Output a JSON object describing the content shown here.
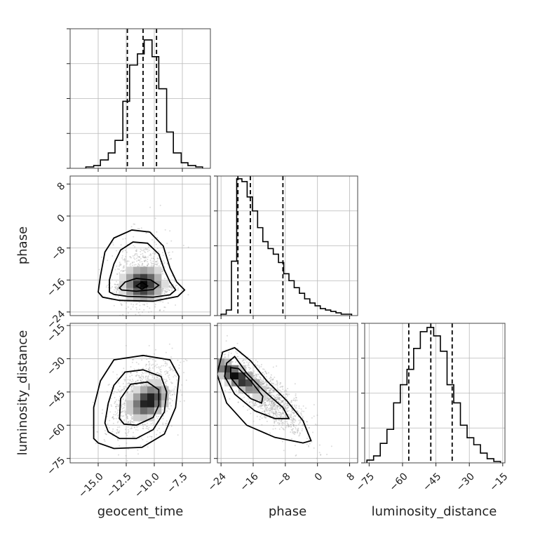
{
  "chart_data": {
    "type": "corner",
    "parameters": [
      "geocent_time",
      "phase",
      "luminosity_distance"
    ],
    "axis_labels": {
      "geocent_time": "geocent_time",
      "phase": "phase",
      "luminosity_distance": "luminosity_distance"
    },
    "ranges": {
      "geocent_time": [
        -17.5,
        -5.0
      ],
      "phase": [
        -24.9,
        10.0
      ],
      "luminosity_distance": [
        -77.0,
        -14.0
      ]
    },
    "ticks": {
      "geocent_time": {
        "values": [
          -15.0,
          -12.5,
          -10.0,
          -7.5
        ],
        "labels": [
          "−15.0",
          "−12.5",
          "−10.0",
          "−7.5"
        ]
      },
      "phase": {
        "values": [
          -24,
          -16,
          -8,
          0,
          8
        ],
        "labels": [
          "−24",
          "−16",
          "−8",
          "0",
          "8"
        ]
      },
      "luminosity_distance": {
        "values": [
          -75,
          -60,
          -45,
          -30,
          -15
        ],
        "labels": [
          "−75",
          "−60",
          "−45",
          "−30",
          "−15"
        ]
      }
    },
    "quantiles": {
      "geocent_time": [
        -12.4,
        -11.0,
        -9.8
      ],
      "phase": [
        -19.8,
        -16.7,
        -8.6
      ],
      "luminosity_distance": [
        -57.2,
        -47.3,
        -37.7
      ]
    },
    "marginals": {
      "geocent_time": {
        "edges": [
          -16.1,
          -15.4,
          -14.8,
          -14.1,
          -13.5,
          -12.8,
          -12.2,
          -11.5,
          -10.9,
          -10.2,
          -9.6,
          -8.9,
          -8.3,
          -7.6,
          -7.0,
          -6.3,
          -5.7
        ],
        "counts": [
          0.01,
          0.02,
          0.06,
          0.11,
          0.2,
          0.48,
          0.74,
          0.82,
          0.92,
          0.8,
          0.57,
          0.26,
          0.11,
          0.04,
          0.02,
          0.01
        ]
      },
      "phase": {
        "edges": [
          -24.0,
          -22.7,
          -21.4,
          -20.1,
          -18.8,
          -17.5,
          -16.2,
          -14.9,
          -13.6,
          -12.3,
          -11.0,
          -9.7,
          -8.4,
          -7.1,
          -5.8,
          -4.5,
          -3.2,
          -1.9,
          -0.6,
          0.7,
          2.0,
          3.3,
          4.6,
          5.9,
          7.2,
          8.5
        ],
        "counts": [
          0.01,
          0.04,
          0.39,
          0.98,
          0.96,
          0.85,
          0.75,
          0.63,
          0.53,
          0.48,
          0.44,
          0.38,
          0.3,
          0.25,
          0.2,
          0.16,
          0.12,
          0.09,
          0.07,
          0.05,
          0.04,
          0.03,
          0.02,
          0.01,
          0.01
        ]
      },
      "luminosity_distance": {
        "edges": [
          -76.0,
          -73.0,
          -70.0,
          -67.0,
          -64.0,
          -61.0,
          -58.0,
          -55.0,
          -52.0,
          -49.0,
          -46.0,
          -43.0,
          -40.0,
          -37.0,
          -34.0,
          -31.0,
          -28.0,
          -25.0,
          -22.0,
          -19.0,
          -16.0
        ],
        "counts": [
          0.02,
          0.05,
          0.14,
          0.24,
          0.43,
          0.56,
          0.67,
          0.82,
          0.94,
          0.97,
          0.91,
          0.8,
          0.56,
          0.43,
          0.27,
          0.18,
          0.13,
          0.07,
          0.03,
          0.01
        ]
      }
    },
    "joint": [
      {
        "x": "geocent_time",
        "y": "phase",
        "mean": [
          -11.0,
          -15.0
        ],
        "std": [
          1.3,
          4.5
        ],
        "rho": 0.0,
        "peak": [
          -11.0,
          -17.0
        ],
        "contours": [
          [
            [
              -14.0,
              -19.0
            ],
            [
              -14.0,
              -16.0
            ],
            [
              -13.6,
              -12.0
            ],
            [
              -13.0,
              -8.5
            ],
            [
              -11.9,
              -6.5
            ],
            [
              -10.6,
              -6.8
            ],
            [
              -9.6,
              -9.5
            ],
            [
              -9.1,
              -13.5
            ],
            [
              -8.6,
              -16.5
            ],
            [
              -8.1,
              -18.5
            ],
            [
              -8.6,
              -19.7
            ],
            [
              -10.1,
              -20.3
            ],
            [
              -12.4,
              -20.1
            ],
            [
              -13.6,
              -19.6
            ]
          ],
          [
            [
              -15.0,
              -19.0
            ],
            [
              -14.8,
              -15.0
            ],
            [
              -14.4,
              -9.0
            ],
            [
              -13.6,
              -5.5
            ],
            [
              -12.0,
              -3.5
            ],
            [
              -10.4,
              -4.0
            ],
            [
              -9.2,
              -7.5
            ],
            [
              -8.6,
              -13.0
            ],
            [
              -8.0,
              -16.5
            ],
            [
              -7.3,
              -18.5
            ],
            [
              -7.9,
              -20.1
            ],
            [
              -10.1,
              -21.3
            ],
            [
              -13.1,
              -21.1
            ],
            [
              -14.6,
              -20.3
            ]
          ],
          [
            [
              -13.1,
              -18.0
            ],
            [
              -12.6,
              -16.5
            ],
            [
              -11.6,
              -15.6
            ],
            [
              -10.3,
              -16.0
            ],
            [
              -9.6,
              -17.3
            ],
            [
              -10.1,
              -18.4
            ],
            [
              -11.6,
              -18.8
            ],
            [
              -12.9,
              -18.5
            ]
          ],
          [
            [
              -11.6,
              -17.5
            ],
            [
              -11.1,
              -16.5
            ],
            [
              -10.6,
              -17.5
            ],
            [
              -11.1,
              -18.3
            ]
          ]
        ]
      },
      {
        "x": "geocent_time",
        "y": "luminosity_distance",
        "mean": [
          -11.0,
          -48.0
        ],
        "std": [
          1.3,
          8.0
        ],
        "rho": 0.35,
        "peak": [
          -10.5,
          -49.0
        ],
        "contours": [
          [
            [
              -14.4,
              -59.0
            ],
            [
              -14.1,
              -50.0
            ],
            [
              -13.6,
              -42.0
            ],
            [
              -12.6,
              -36.0
            ],
            [
              -11.0,
              -35.0
            ],
            [
              -9.4,
              -38.0
            ],
            [
              -8.9,
              -45.0
            ],
            [
              -9.1,
              -54.0
            ],
            [
              -10.1,
              -62.0
            ],
            [
              -11.6,
              -66.0
            ],
            [
              -13.1,
              -66.0
            ],
            [
              -14.1,
              -63.0
            ]
          ],
          [
            [
              -15.4,
              -66.0
            ],
            [
              -15.4,
              -52.0
            ],
            [
              -14.8,
              -40.0
            ],
            [
              -13.6,
              -30.5
            ],
            [
              -11.0,
              -28.5
            ],
            [
              -8.6,
              -30.5
            ],
            [
              -7.8,
              -38.0
            ],
            [
              -8.1,
              -52.0
            ],
            [
              -9.1,
              -64.0
            ],
            [
              -11.1,
              -70.0
            ],
            [
              -13.6,
              -70.5
            ],
            [
              -15.0,
              -68.0
            ]
          ],
          [
            [
              -13.1,
              -57.0
            ],
            [
              -13.0,
              -48.0
            ],
            [
              -12.1,
              -41.5
            ],
            [
              -10.6,
              -40.5
            ],
            [
              -9.6,
              -44.0
            ],
            [
              -9.6,
              -51.0
            ],
            [
              -10.1,
              -56.5
            ],
            [
              -11.6,
              -60.0
            ],
            [
              -12.7,
              -59.5
            ]
          ]
        ]
      },
      {
        "x": "phase",
        "y": "luminosity_distance",
        "mean": [
          -13.0,
          -46.0
        ],
        "std": [
          5.0,
          9.0
        ],
        "rho": -0.82,
        "peak": [
          -20.0,
          -38.0
        ],
        "contours": [
          [
            [
              -22.6,
              -32.0
            ],
            [
              -20.6,
              -29.0
            ],
            [
              -17.6,
              -36.5
            ],
            [
              -13.6,
              -44.0
            ],
            [
              -8.6,
              -52.0
            ],
            [
              -7.1,
              -57.0
            ],
            [
              -10.6,
              -57.0
            ],
            [
              -15.6,
              -53.5
            ],
            [
              -20.6,
              -46.0
            ],
            [
              -23.1,
              -38.0
            ]
          ],
          [
            [
              -23.6,
              -27.0
            ],
            [
              -20.6,
              -25.0
            ],
            [
              -16.6,
              -31.0
            ],
            [
              -12.6,
              -40.0
            ],
            [
              -7.6,
              -49.0
            ],
            [
              -3.6,
              -58.0
            ],
            [
              -1.6,
              -67.0
            ],
            [
              -3.6,
              -68.0
            ],
            [
              -10.6,
              -65.5
            ],
            [
              -17.6,
              -60.0
            ],
            [
              -22.6,
              -50.0
            ],
            [
              -25.0,
              -37.0
            ]
          ],
          [
            [
              -21.6,
              -34.0
            ],
            [
              -19.6,
              -34.5
            ],
            [
              -16.6,
              -40.0
            ],
            [
              -13.6,
              -47.0
            ],
            [
              -13.9,
              -50.0
            ],
            [
              -16.6,
              -48.0
            ],
            [
              -19.6,
              -43.0
            ],
            [
              -21.6,
              -38.5
            ]
          ]
        ]
      }
    ]
  }
}
